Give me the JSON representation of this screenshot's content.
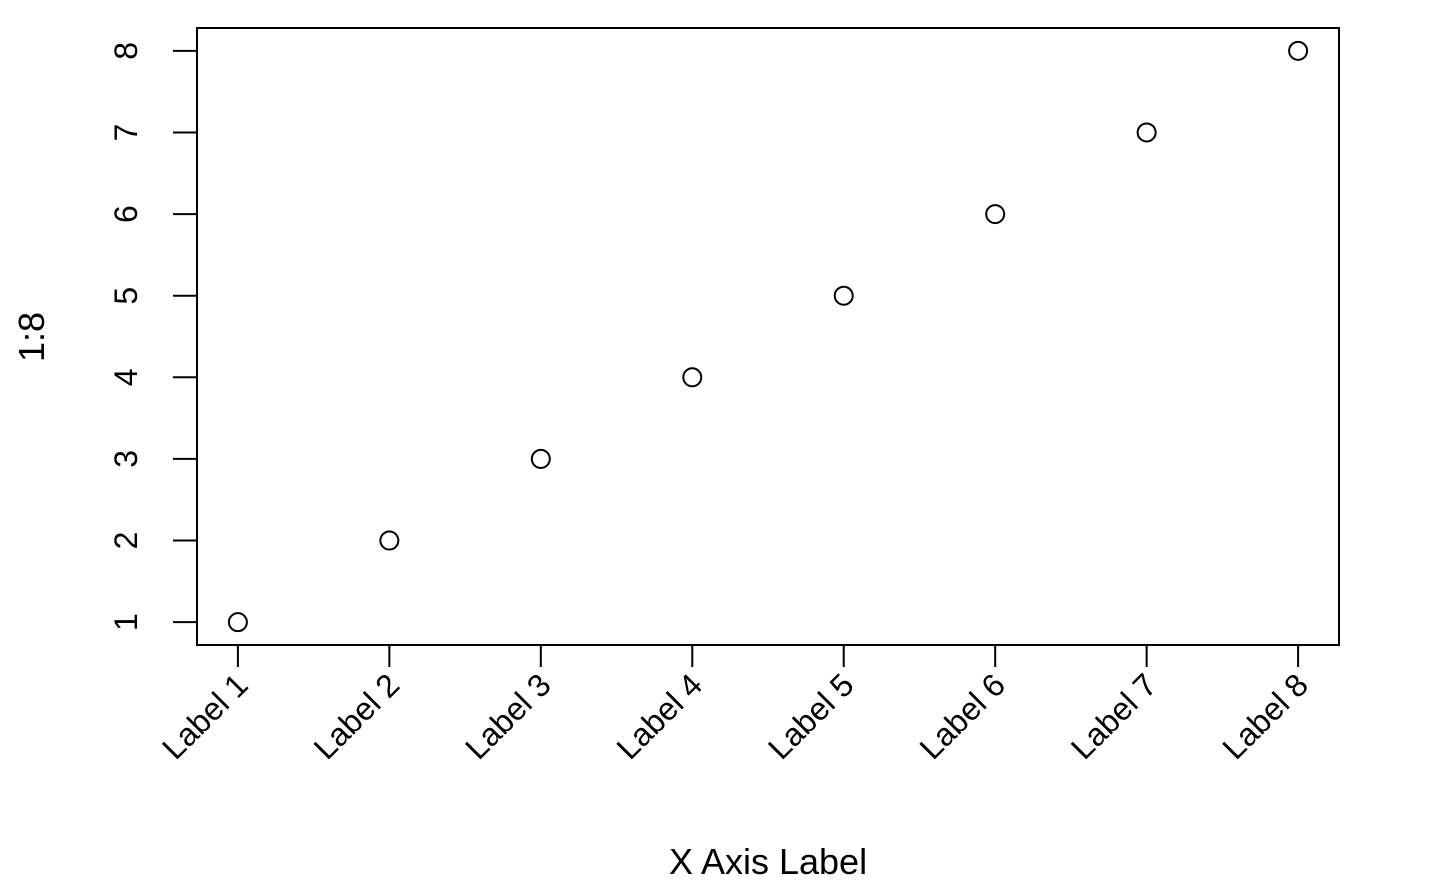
{
  "chart_data": {
    "type": "scatter",
    "title": "",
    "xlabel": "X Axis Label",
    "ylabel": "1:8",
    "categories": [
      "Label 1",
      "Label 2",
      "Label 3",
      "Label 4",
      "Label 5",
      "Label 6",
      "Label 7",
      "Label 8"
    ],
    "x": [
      1,
      2,
      3,
      4,
      5,
      6,
      7,
      8
    ],
    "values": [
      1,
      2,
      3,
      4,
      5,
      6,
      7,
      8
    ],
    "yticks": [
      1,
      2,
      3,
      4,
      5,
      6,
      7,
      8
    ],
    "xlim": [
      0.73,
      8.27
    ],
    "ylim": [
      0.72,
      8.28
    ],
    "grid": false,
    "legend": "none",
    "marker": "open-circle",
    "colors": {
      "marker": "#000000",
      "axis": "#000000",
      "background": "#ffffff"
    }
  }
}
